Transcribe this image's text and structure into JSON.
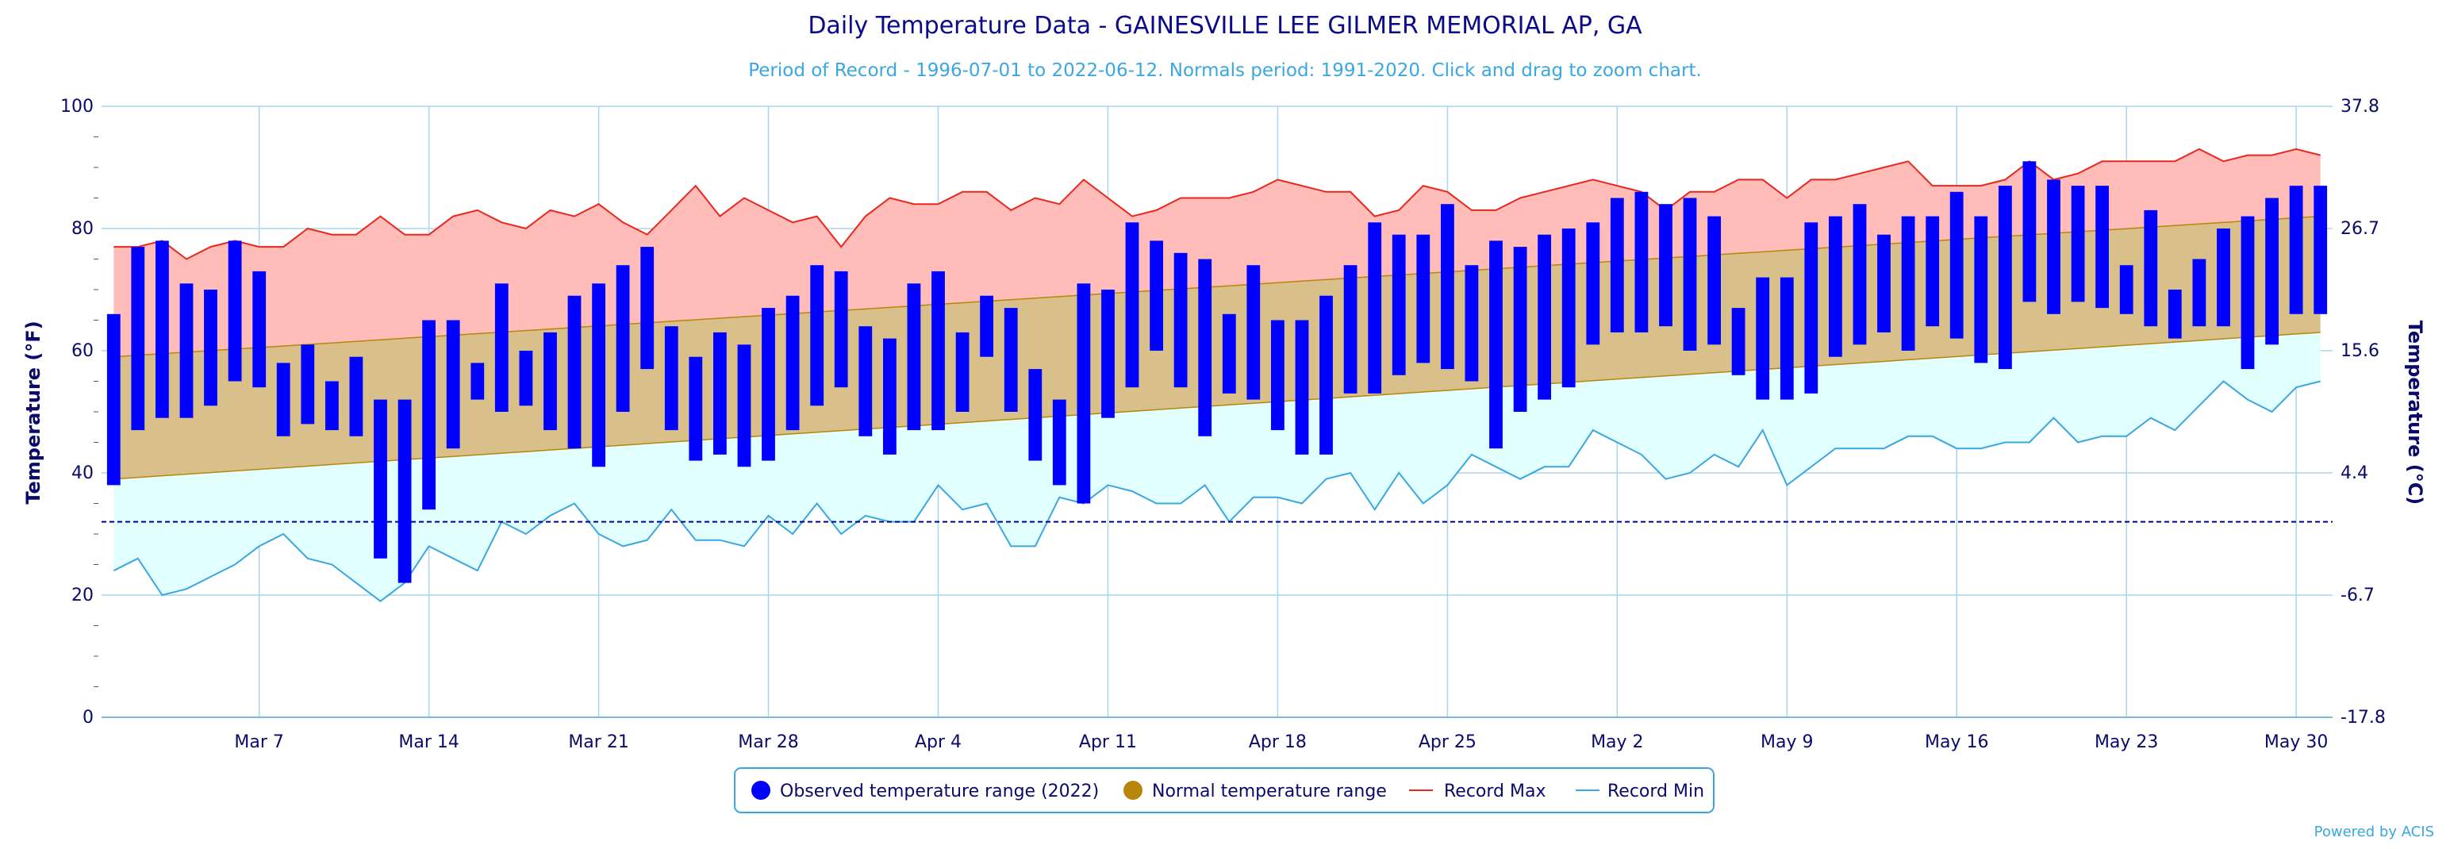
{
  "colors": {
    "observed": "#0000ff",
    "normal": "#b8860b",
    "normal_fill": "#d9c08a",
    "record_max": "#e8281e",
    "record_max_fill": "#ffbcb8",
    "record_min": "#3aa7e0",
    "record_min_fill": "#e2ffff",
    "freeze_line": "#000088",
    "grid": "#a9d6ef",
    "text": "#0a0a6a"
  },
  "chart_data": {
    "type": "bar",
    "title": "Daily Temperature Data - GAINESVILLE LEE GILMER MEMORIAL AP, GA",
    "subtitle": "Period of Record - 1996-07-01 to 2022-06-12. Normals period: 1991-2020. Click and drag to zoom chart.",
    "ylabel": "Temperature (°F)",
    "ylabel_right": "Temperature (°C)",
    "ylim": [
      0,
      100
    ],
    "yticks": [
      0,
      20,
      40,
      60,
      80,
      100
    ],
    "yticks_right": [
      "-17.8",
      "-6.7",
      "4.4",
      "15.6",
      "26.7",
      "37.8"
    ],
    "x_tick_labels": [
      "Mar 7",
      "Mar 14",
      "Mar 21",
      "Mar 28",
      "Apr 4",
      "Apr 11",
      "Apr 18",
      "Apr 25",
      "May 2",
      "May 9",
      "May 16",
      "May 23",
      "May 30"
    ],
    "x_tick_day_index": [
      6,
      13,
      20,
      27,
      34,
      41,
      48,
      55,
      62,
      69,
      76,
      83,
      90
    ],
    "day_count": 92,
    "freezing_line": 32,
    "normals": {
      "min_start": 39,
      "min_end": 63,
      "max_start": 59,
      "max_end": 82
    },
    "observed": [
      [
        38,
        66
      ],
      [
        47,
        77
      ],
      [
        49,
        78
      ],
      [
        49,
        71
      ],
      [
        51,
        70
      ],
      [
        55,
        78
      ],
      [
        54,
        73
      ],
      [
        46,
        58
      ],
      [
        48,
        61
      ],
      [
        47,
        55
      ],
      [
        46,
        59
      ],
      [
        26,
        52
      ],
      [
        22,
        52
      ],
      [
        34,
        65
      ],
      [
        44,
        65
      ],
      [
        52,
        58
      ],
      [
        50,
        71
      ],
      [
        51,
        60
      ],
      [
        47,
        63
      ],
      [
        44,
        69
      ],
      [
        41,
        71
      ],
      [
        50,
        74
      ],
      [
        57,
        77
      ],
      [
        47,
        64
      ],
      [
        42,
        59
      ],
      [
        43,
        63
      ],
      [
        41,
        61
      ],
      [
        42,
        67
      ],
      [
        47,
        69
      ],
      [
        51,
        74
      ],
      [
        54,
        73
      ],
      [
        46,
        64
      ],
      [
        43,
        62
      ],
      [
        47,
        71
      ],
      [
        47,
        73
      ],
      [
        50,
        63
      ],
      [
        59,
        69
      ],
      [
        50,
        67
      ],
      [
        42,
        57
      ],
      [
        38,
        52
      ],
      [
        35,
        71
      ],
      [
        49,
        70
      ],
      [
        54,
        81
      ],
      [
        60,
        78
      ],
      [
        54,
        76
      ],
      [
        46,
        75
      ],
      [
        53,
        66
      ],
      [
        52,
        74
      ],
      [
        47,
        65
      ],
      [
        43,
        65
      ],
      [
        43,
        69
      ],
      [
        53,
        74
      ],
      [
        53,
        81
      ],
      [
        56,
        79
      ],
      [
        58,
        79
      ],
      [
        57,
        84
      ],
      [
        55,
        74
      ],
      [
        44,
        78
      ],
      [
        50,
        77
      ],
      [
        52,
        79
      ],
      [
        54,
        80
      ],
      [
        61,
        81
      ],
      [
        63,
        85
      ],
      [
        63,
        86
      ],
      [
        64,
        84
      ],
      [
        60,
        85
      ],
      [
        61,
        82
      ],
      [
        56,
        67
      ],
      [
        52,
        72
      ],
      [
        52,
        72
      ],
      [
        53,
        81
      ],
      [
        59,
        82
      ],
      [
        61,
        84
      ],
      [
        63,
        79
      ],
      [
        60,
        82
      ],
      [
        64,
        82
      ],
      [
        62,
        86
      ],
      [
        58,
        82
      ],
      [
        57,
        87
      ],
      [
        68,
        91
      ],
      [
        66,
        88
      ],
      [
        68,
        87
      ],
      [
        67,
        87
      ],
      [
        66,
        74
      ],
      [
        64,
        83
      ],
      [
        62,
        70
      ],
      [
        64,
        75
      ],
      [
        64,
        80
      ],
      [
        57,
        82
      ],
      [
        61,
        85
      ],
      [
        66,
        87
      ],
      [
        66,
        87
      ]
    ],
    "record_max": [
      77,
      77,
      78,
      75,
      77,
      78,
      77,
      77,
      80,
      79,
      79,
      82,
      79,
      79,
      82,
      83,
      81,
      80,
      83,
      82,
      84,
      81,
      79,
      83,
      87,
      82,
      85,
      83,
      81,
      82,
      77,
      82,
      85,
      84,
      84,
      86,
      86,
      83,
      85,
      84,
      88,
      85,
      82,
      83,
      85,
      85,
      85,
      86,
      88,
      87,
      86,
      86,
      82,
      83,
      87,
      86,
      83,
      83,
      85,
      86,
      87,
      88,
      87,
      86,
      83,
      86,
      86,
      88,
      88,
      85,
      88,
      88,
      89,
      90,
      91,
      87,
      87,
      87,
      88,
      91,
      88,
      89,
      91,
      91,
      91,
      91,
      93,
      91,
      92,
      92,
      93,
      92
    ],
    "record_min": [
      24,
      26,
      20,
      21,
      23,
      25,
      28,
      30,
      26,
      25,
      22,
      19,
      22,
      28,
      26,
      24,
      32,
      30,
      33,
      35,
      30,
      28,
      29,
      34,
      29,
      29,
      28,
      33,
      30,
      35,
      30,
      33,
      32,
      32,
      38,
      34,
      35,
      28,
      28,
      36,
      35,
      38,
      37,
      35,
      35,
      38,
      32,
      36,
      36,
      35,
      39,
      40,
      34,
      40,
      35,
      38,
      43,
      41,
      39,
      41,
      41,
      47,
      45,
      43,
      39,
      40,
      43,
      41,
      47,
      38,
      41,
      44,
      44,
      44,
      46,
      46,
      44,
      44,
      45,
      45,
      49,
      45,
      46,
      46,
      49,
      47,
      51,
      55,
      52,
      50,
      54,
      55
    ],
    "legend": [
      {
        "label": "Observed temperature range (2022)",
        "marker": "dot",
        "color": "#0000ff"
      },
      {
        "label": "Normal temperature range",
        "marker": "dot",
        "color": "#b8860b"
      },
      {
        "label": "Record Max",
        "marker": "line",
        "color": "#e8281e"
      },
      {
        "label": "Record Min",
        "marker": "line",
        "color": "#3aa7e0"
      }
    ],
    "legend_position": "bottom-center",
    "grid": true
  },
  "credit": "Powered by ACIS"
}
